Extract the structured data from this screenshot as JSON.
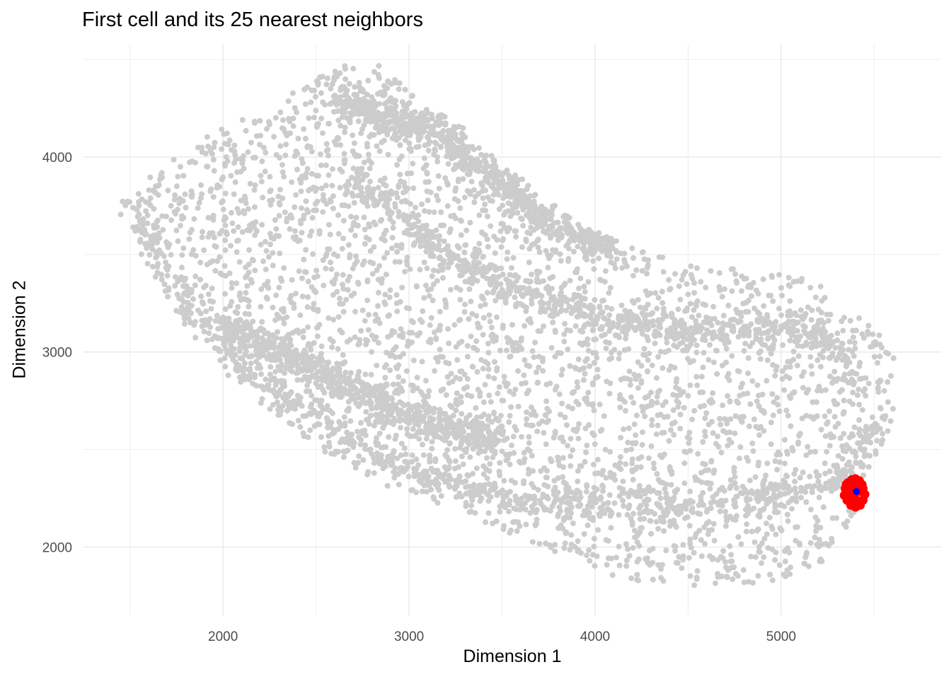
{
  "chart_data": {
    "type": "scatter",
    "title": "First cell and its 25 nearest neighbors",
    "xlabel": "Dimension 1",
    "ylabel": "Dimension 2",
    "xlim": [
      1250,
      5860
    ],
    "ylim": [
      1650,
      4580
    ],
    "x_ticks": [
      2000,
      3000,
      4000,
      5000
    ],
    "y_ticks": [
      2000,
      3000,
      4000
    ],
    "grid": true,
    "legend": "none",
    "series": [
      {
        "role": "background cells",
        "color": "#cccccc",
        "point_count": 6000,
        "region": {
          "outer_top": [
            [
              1450,
              3780
            ],
            [
              1600,
              3900
            ],
            [
              1800,
              4050
            ],
            [
              2000,
              4150
            ],
            [
              2300,
              4280
            ],
            [
              2600,
              4470
            ],
            [
              2800,
              4500
            ],
            [
              3000,
              4350
            ],
            [
              3300,
              4150
            ],
            [
              3600,
              3900
            ],
            [
              3900,
              3660
            ],
            [
              4200,
              3540
            ],
            [
              4500,
              3460
            ],
            [
              4800,
              3430
            ],
            [
              5000,
              3410
            ],
            [
              5200,
              3350
            ],
            [
              5400,
              3200
            ],
            [
              5600,
              3060
            ]
          ],
          "outer_bottom": [
            [
              1450,
              3700
            ],
            [
              1700,
              3250
            ],
            [
              2000,
              2900
            ],
            [
              2300,
              2650
            ],
            [
              2600,
              2450
            ],
            [
              2900,
              2300
            ],
            [
              3200,
              2200
            ],
            [
              3500,
              2090
            ],
            [
              3800,
              1950
            ],
            [
              4100,
              1850
            ],
            [
              4400,
              1800
            ],
            [
              4700,
              1790
            ],
            [
              5000,
              1820
            ],
            [
              5200,
              1900
            ],
            [
              5400,
              2150
            ],
            [
              5550,
              2500
            ],
            [
              5620,
              2750
            ]
          ],
          "dense_bands": [
            [
              [
                1500,
                3750
              ],
              [
                1800,
                3250
              ],
              [
                2100,
                2950
              ],
              [
                2400,
                2720
              ],
              [
                2700,
                2550
              ],
              [
                3000,
                2400
              ],
              [
                3300,
                2300
              ],
              [
                3600,
                2240
              ],
              [
                3900,
                2230
              ],
              [
                4200,
                2220
              ],
              [
                4500,
                2210
              ],
              [
                4800,
                2230
              ],
              [
                5100,
                2280
              ],
              [
                5350,
                2380
              ],
              [
                5500,
                2600
              ],
              [
                5600,
                2850
              ],
              [
                5550,
                3050
              ]
            ],
            [
              [
                2600,
                4300
              ],
              [
                2900,
                4200
              ],
              [
                3200,
                4100
              ],
              [
                3500,
                3850
              ],
              [
                3800,
                3620
              ],
              [
                4100,
                3560
              ]
            ],
            [
              [
                2700,
                3900
              ],
              [
                3000,
                3650
              ],
              [
                3300,
                3450
              ],
              [
                3600,
                3300
              ],
              [
                3900,
                3200
              ],
              [
                4200,
                3150
              ],
              [
                4500,
                3100
              ],
              [
                4800,
                3120
              ],
              [
                5000,
                3130
              ],
              [
                5200,
                3080
              ],
              [
                5400,
                2900
              ]
            ],
            [
              [
                2000,
                3150
              ],
              [
                2300,
                3000
              ],
              [
                2600,
                2850
              ],
              [
                2900,
                2700
              ],
              [
                3200,
                2620
              ],
              [
                3500,
                2560
              ]
            ]
          ]
        }
      },
      {
        "role": "first cell",
        "color": "#0000ff",
        "points": [
          [
            5405,
            2285
          ]
        ]
      },
      {
        "role": "25 nearest neighbors",
        "color": "#ff0000",
        "points": [
          [
            5345,
            2300
          ],
          [
            5360,
            2330
          ],
          [
            5380,
            2345
          ],
          [
            5400,
            2350
          ],
          [
            5420,
            2340
          ],
          [
            5440,
            2300
          ],
          [
            5450,
            2270
          ],
          [
            5440,
            2240
          ],
          [
            5425,
            2215
          ],
          [
            5400,
            2205
          ],
          [
            5375,
            2215
          ],
          [
            5355,
            2240
          ],
          [
            5340,
            2265
          ],
          [
            5365,
            2280
          ],
          [
            5385,
            2300
          ],
          [
            5410,
            2310
          ],
          [
            5430,
            2285
          ],
          [
            5395,
            2255
          ],
          [
            5375,
            2320
          ],
          [
            5415,
            2235
          ],
          [
            5350,
            2320
          ],
          [
            5390,
            2235
          ],
          [
            5360,
            2255
          ],
          [
            5435,
            2320
          ],
          [
            5405,
            2330
          ]
        ]
      }
    ]
  }
}
